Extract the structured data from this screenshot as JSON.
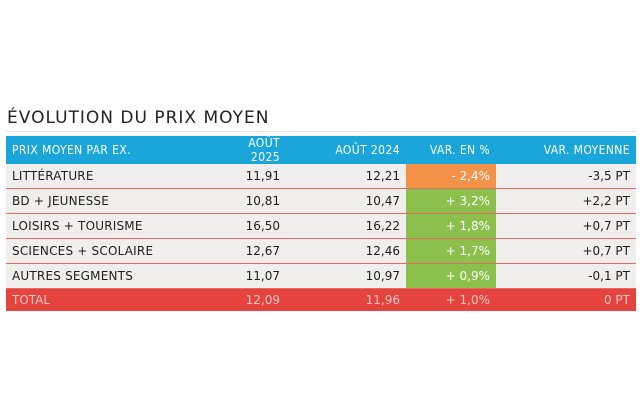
{
  "title": "ÉVOLUTION DU PRIX MOYEN",
  "colors": {
    "header": "#1ba6db",
    "negative": "#f5924a",
    "positive": "#8cc04c",
    "total": "#e5443e"
  },
  "headers": [
    "PRIX MOYEN PAR EX.",
    "AOÛT 2025",
    "AOÛT 2024",
    "VAR. EN %",
    "VAR. MOYENNE"
  ],
  "rows": [
    {
      "label": "LITTÉRATURE",
      "aug2025": "11,91",
      "aug2024": "12,21",
      "var_pct": "- 2,4%",
      "var_avg": "-3,5 PT"
    },
    {
      "label": "BD + JEUNESSE",
      "aug2025": "10,81",
      "aug2024": "10,47",
      "var_pct": "+ 3,2%",
      "var_avg": "+2,2 PT"
    },
    {
      "label": "LOISIRS + TOURISME",
      "aug2025": "16,50",
      "aug2024": "16,22",
      "var_pct": "+ 1,8%",
      "var_avg": "+0,7 PT"
    },
    {
      "label": "SCIENCES + SCOLAIRE",
      "aug2025": "12,67",
      "aug2024": "12,46",
      "var_pct": "+ 1,7%",
      "var_avg": "+0,7 PT"
    },
    {
      "label": "AUTRES SEGMENTS",
      "aug2025": "11,07",
      "aug2024": "10,97",
      "var_pct": "+ 0,9%",
      "var_avg": "-0,1 PT"
    }
  ],
  "total": {
    "label": "TOTAL",
    "aug2025": "12,09",
    "aug2024": "11,96",
    "var_pct": "+ 1,0%",
    "var_avg": "0 PT"
  }
}
